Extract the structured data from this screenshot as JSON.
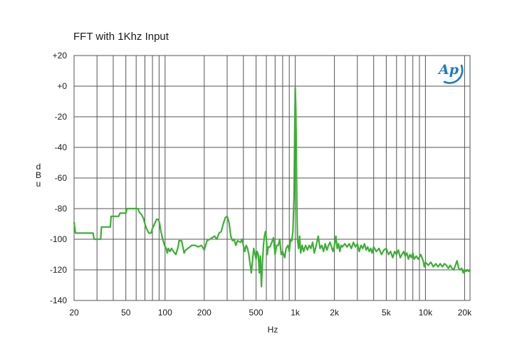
{
  "chart_data": {
    "type": "line",
    "title": "FFT with 1Khz Input",
    "xlabel": "Hz",
    "ylabel": "dBu",
    "x_scale": "log",
    "xlim": [
      20,
      22000
    ],
    "ylim": [
      -140,
      20
    ],
    "x_ticks": [
      {
        "value": 20,
        "label": "20"
      },
      {
        "value": 50,
        "label": "50"
      },
      {
        "value": 100,
        "label": "100"
      },
      {
        "value": 200,
        "label": "200"
      },
      {
        "value": 500,
        "label": "500"
      },
      {
        "value": 1000,
        "label": "1k"
      },
      {
        "value": 2000,
        "label": "2k"
      },
      {
        "value": 5000,
        "label": "5k"
      },
      {
        "value": 10000,
        "label": "10k"
      },
      {
        "value": 20000,
        "label": "20k"
      }
    ],
    "y_ticks": [
      {
        "value": 20,
        "label": "+20"
      },
      {
        "value": 0,
        "label": "+0"
      },
      {
        "value": -20,
        "label": "-20"
      },
      {
        "value": -40,
        "label": "-40"
      },
      {
        "value": -60,
        "label": "-60"
      },
      {
        "value": -80,
        "label": "-80"
      },
      {
        "value": -100,
        "label": "-100"
      },
      {
        "value": -120,
        "label": "-120"
      },
      {
        "value": -140,
        "label": "-140"
      }
    ],
    "grid": true,
    "logo": "Ap",
    "colors": {
      "trace": "#3cb034",
      "grid": "#555555",
      "logo": "#1a7bc0"
    },
    "series": [
      {
        "points": [
          [
            20,
            -89
          ],
          [
            20.5,
            -96
          ],
          [
            28,
            -96
          ],
          [
            28.5,
            -100
          ],
          [
            32,
            -100
          ],
          [
            32.5,
            -92
          ],
          [
            38,
            -92
          ],
          [
            38.5,
            -85
          ],
          [
            44,
            -85
          ],
          [
            45,
            -83
          ],
          [
            50,
            -83
          ],
          [
            51,
            -80
          ],
          [
            62,
            -80
          ],
          [
            63,
            -82
          ],
          [
            66,
            -84
          ],
          [
            68,
            -86
          ],
          [
            70,
            -90
          ],
          [
            72,
            -93
          ],
          [
            75,
            -96
          ],
          [
            78,
            -96
          ],
          [
            80,
            -93
          ],
          [
            83,
            -90
          ],
          [
            86,
            -87
          ],
          [
            89,
            -87
          ],
          [
            91,
            -90
          ],
          [
            93,
            -95
          ],
          [
            96,
            -100
          ],
          [
            99,
            -104
          ],
          [
            102,
            -106
          ],
          [
            104,
            -109
          ],
          [
            106,
            -106
          ],
          [
            109,
            -108
          ],
          [
            112,
            -106
          ],
          [
            116,
            -108
          ],
          [
            121,
            -110
          ],
          [
            126,
            -105
          ],
          [
            128,
            -101
          ],
          [
            134,
            -101
          ],
          [
            137,
            -105
          ],
          [
            140,
            -109
          ],
          [
            144,
            -107
          ],
          [
            150,
            -106
          ],
          [
            160,
            -104
          ],
          [
            170,
            -104
          ],
          [
            180,
            -105
          ],
          [
            190,
            -104
          ],
          [
            200,
            -107
          ],
          [
            210,
            -101
          ],
          [
            220,
            -100
          ],
          [
            230,
            -99
          ],
          [
            240,
            -98
          ],
          [
            250,
            -100
          ],
          [
            260,
            -96
          ],
          [
            270,
            -95
          ],
          [
            280,
            -90
          ],
          [
            290,
            -86
          ],
          [
            300,
            -85
          ],
          [
            310,
            -89
          ],
          [
            320,
            -98
          ],
          [
            330,
            -101
          ],
          [
            340,
            -100
          ],
          [
            350,
            -104
          ],
          [
            360,
            -101
          ],
          [
            380,
            -102
          ],
          [
            390,
            -100
          ],
          [
            400,
            -104
          ],
          [
            410,
            -108
          ],
          [
            420,
            -104
          ],
          [
            430,
            -106
          ],
          [
            440,
            -110
          ],
          [
            460,
            -122
          ],
          [
            480,
            -106
          ],
          [
            500,
            -113
          ],
          [
            510,
            -108
          ],
          [
            520,
            -110
          ],
          [
            530,
            -122
          ],
          [
            540,
            -111
          ],
          [
            550,
            -131
          ],
          [
            560,
            -115
          ],
          [
            570,
            -104
          ],
          [
            580,
            -98
          ],
          [
            590,
            -95
          ],
          [
            600,
            -99
          ],
          [
            610,
            -110
          ],
          [
            620,
            -105
          ],
          [
            640,
            -105
          ],
          [
            660,
            -102
          ],
          [
            680,
            -99
          ],
          [
            700,
            -110
          ],
          [
            720,
            -104
          ],
          [
            740,
            -104
          ],
          [
            760,
            -100
          ],
          [
            780,
            -110
          ],
          [
            800,
            -108
          ],
          [
            830,
            -112
          ],
          [
            850,
            -106
          ],
          [
            880,
            -104
          ],
          [
            900,
            -108
          ],
          [
            920,
            -100
          ],
          [
            940,
            -101
          ],
          [
            960,
            -95
          ],
          [
            980,
            -70
          ],
          [
            990,
            -30
          ],
          [
            1000,
            -1
          ],
          [
            1010,
            -15
          ],
          [
            1020,
            -45
          ],
          [
            1030,
            -80
          ],
          [
            1040,
            -100
          ],
          [
            1060,
            -106
          ],
          [
            1080,
            -98
          ],
          [
            1100,
            -109
          ],
          [
            1130,
            -104
          ],
          [
            1160,
            -108
          ],
          [
            1200,
            -104
          ],
          [
            1240,
            -107
          ],
          [
            1280,
            -104
          ],
          [
            1320,
            -106
          ],
          [
            1360,
            -102
          ],
          [
            1400,
            -109
          ],
          [
            1450,
            -104
          ],
          [
            1500,
            -98
          ],
          [
            1550,
            -106
          ],
          [
            1600,
            -104
          ],
          [
            1650,
            -108
          ],
          [
            1700,
            -103
          ],
          [
            1750,
            -107
          ],
          [
            1800,
            -104
          ],
          [
            1850,
            -102
          ],
          [
            1900,
            -105
          ],
          [
            1950,
            -108
          ],
          [
            2000,
            -104
          ],
          [
            2050,
            -98
          ],
          [
            2100,
            -106
          ],
          [
            2150,
            -103
          ],
          [
            2200,
            -108
          ],
          [
            2250,
            -104
          ],
          [
            2300,
            -105
          ],
          [
            2400,
            -103
          ],
          [
            2500,
            -105
          ],
          [
            2600,
            -103
          ],
          [
            2700,
            -106
          ],
          [
            2800,
            -102
          ],
          [
            2900,
            -105
          ],
          [
            3000,
            -103
          ],
          [
            3100,
            -108
          ],
          [
            3200,
            -104
          ],
          [
            3300,
            -106
          ],
          [
            3400,
            -103
          ],
          [
            3500,
            -107
          ],
          [
            3600,
            -105
          ],
          [
            3700,
            -108
          ],
          [
            3800,
            -106
          ],
          [
            3900,
            -109
          ],
          [
            4000,
            -105
          ],
          [
            4200,
            -108
          ],
          [
            4400,
            -106
          ],
          [
            4600,
            -110
          ],
          [
            4800,
            -107
          ],
          [
            5000,
            -106
          ],
          [
            5200,
            -110
          ],
          [
            5400,
            -108
          ],
          [
            5600,
            -112
          ],
          [
            5800,
            -108
          ],
          [
            6000,
            -110
          ],
          [
            6200,
            -107
          ],
          [
            6400,
            -112
          ],
          [
            6600,
            -110
          ],
          [
            6800,
            -108
          ],
          [
            7000,
            -111
          ],
          [
            7200,
            -109
          ],
          [
            7400,
            -113
          ],
          [
            7600,
            -110
          ],
          [
            7800,
            -112
          ],
          [
            8000,
            -109
          ],
          [
            8200,
            -113
          ],
          [
            8500,
            -111
          ],
          [
            8800,
            -113
          ],
          [
            9200,
            -110
          ],
          [
            9600,
            -114
          ],
          [
            9800,
            -118
          ],
          [
            10000,
            -115
          ],
          [
            10500,
            -117
          ],
          [
            11000,
            -115
          ],
          [
            11500,
            -118
          ],
          [
            12000,
            -116
          ],
          [
            12500,
            -118
          ],
          [
            13000,
            -116
          ],
          [
            13500,
            -118
          ],
          [
            14000,
            -116
          ],
          [
            14500,
            -117
          ],
          [
            15000,
            -119
          ],
          [
            15500,
            -117
          ],
          [
            16000,
            -119
          ],
          [
            16500,
            -120
          ],
          [
            17000,
            -117
          ],
          [
            17500,
            -114
          ],
          [
            18000,
            -119
          ],
          [
            18500,
            -120
          ],
          [
            19000,
            -119
          ],
          [
            19500,
            -122
          ],
          [
            20000,
            -120
          ],
          [
            20500,
            -121
          ],
          [
            21000,
            -120
          ],
          [
            21500,
            -121
          ],
          [
            22000,
            -120
          ]
        ]
      }
    ]
  }
}
